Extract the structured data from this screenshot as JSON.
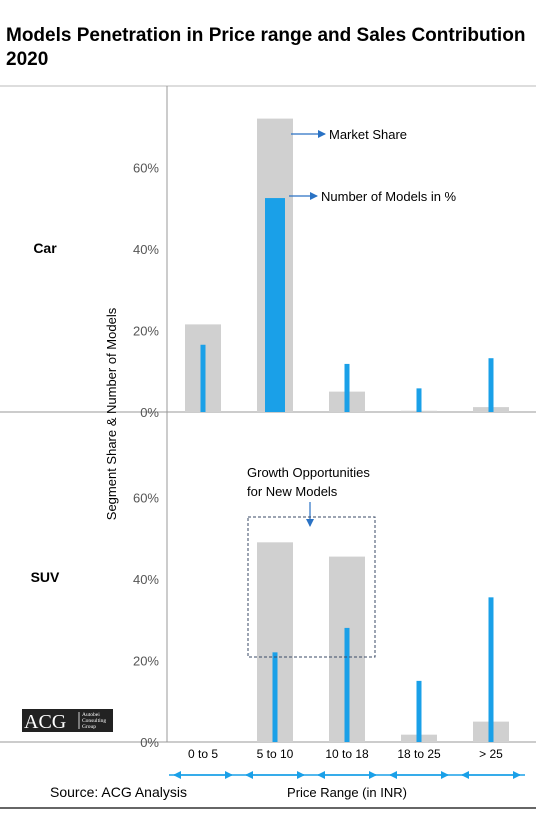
{
  "title": "Models Penetration in Price range and Sales Contribution 2020",
  "source": "Source: ACG Analysis",
  "logo": {
    "text": "ACG",
    "sub": [
      "Autobei",
      "Consulting",
      "Group"
    ]
  },
  "colors": {
    "market_share": "#d0d0d0",
    "models": "#1aa0e8",
    "axis": "#888888",
    "arrow": "#2a72c4"
  },
  "chart_data": {
    "type": "bar",
    "xlabel": "Price Range (in INR)",
    "ylabel": "Segment Share & Number of Models",
    "categories": [
      "0 to 5",
      "5 to 10",
      "10 to 18",
      "18 to 25",
      "> 25"
    ],
    "yticks": [
      "0%",
      "20%",
      "40%",
      "60%"
    ],
    "ylim": [
      0,
      72
    ],
    "grid": false,
    "panels": [
      {
        "name": "Car",
        "series": [
          {
            "name": "Market Share",
            "values": [
              21.5,
              72,
              5,
              0.3,
              1.2
            ]
          },
          {
            "name": "Number of Models in %",
            "values": [
              16.5,
              52.5,
              11.8,
              5.8,
              13.2
            ]
          }
        ]
      },
      {
        "name": "SUV",
        "series": [
          {
            "name": "Market Share",
            "values": [
              0,
              49,
              45.5,
              1.8,
              5
            ]
          },
          {
            "name": "Number of Models in %",
            "values": [
              0,
              22,
              28,
              15,
              35.5
            ]
          }
        ]
      }
    ],
    "annotations": {
      "market_share": "Market Share",
      "models": "Number of Models in %",
      "growth": [
        "Growth Opportunities",
        "for New Models"
      ]
    }
  }
}
